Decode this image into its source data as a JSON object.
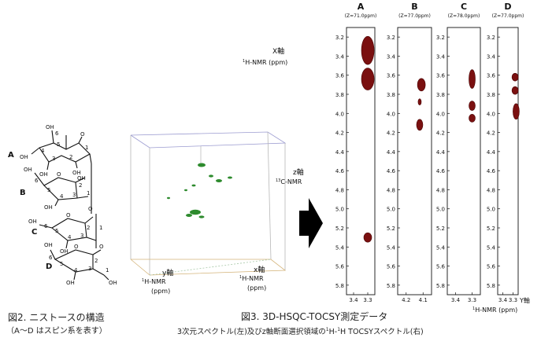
{
  "structure": {
    "spin_labels": [
      "A",
      "B",
      "C",
      "D"
    ],
    "atom_labels": {
      "oh": "OH",
      "o": "O",
      "c1": "1",
      "c2": "2",
      "c3": "3",
      "c4": "4",
      "c5": "5",
      "c6": "6"
    },
    "caption_title": "図2. ニストースの構造",
    "caption_sub": "（A～D はスピン系を表す）"
  },
  "cube": {
    "z_axis_title": "z軸",
    "z_axis_unit": "13C-NMR",
    "z_axis_sup": "13",
    "z_axis_rest": "C-NMR",
    "y_axis_title": "y軸",
    "y_axis_sup": "1",
    "y_axis_rest": "H-NMR",
    "y_axis_unit": "(ppm)",
    "x_axis_title": "x軸",
    "x_axis_sup": "1",
    "x_axis_rest": "H-NMR",
    "x_axis_unit": "(ppm)"
  },
  "spectra": {
    "x_axis_title": "X軸",
    "x_axis_sup": "1",
    "x_axis_rest": "H-NMR (ppm)",
    "y_axis_title": "Y軸",
    "y_axis_sup": "1",
    "y_axis_rest": "H-NMR (ppm)",
    "y_ticks": [
      "3.2",
      "3.4",
      "3.6",
      "3.8",
      "4.0",
      "4.2",
      "4.4",
      "4.6",
      "4.8",
      "5.0",
      "5.2",
      "5.4",
      "5.6",
      "5.8"
    ],
    "panels": [
      {
        "label": "A",
        "z": "(Z=71.0ppm)",
        "x_ticks": [
          "3.4",
          "3.3"
        ]
      },
      {
        "label": "B",
        "z": "(Z=77.0ppm)",
        "x_ticks": [
          "4.2",
          "4.1"
        ]
      },
      {
        "label": "C",
        "z": "(Z=78.0ppm)",
        "x_ticks": [
          "3.4",
          "3.3"
        ]
      },
      {
        "label": "D",
        "z": "(Z=77.0ppm)",
        "x_ticks": [
          "3.4",
          "3.3"
        ]
      }
    ]
  },
  "caption": {
    "title": "図3. 3D-HSQC-TOCSY測定データ",
    "sub": "3次元スペクトル(左)及びz軸断面選択領域の1H-1H TOCSYスペクトル(右)",
    "sub_a": "3次元スペクトル(左)及びz軸断面選択領域の",
    "sub_sup1": "1",
    "sub_b": "H-",
    "sub_sup2": "1",
    "sub_c": "H TOCSYスペクトル(右)"
  }
}
